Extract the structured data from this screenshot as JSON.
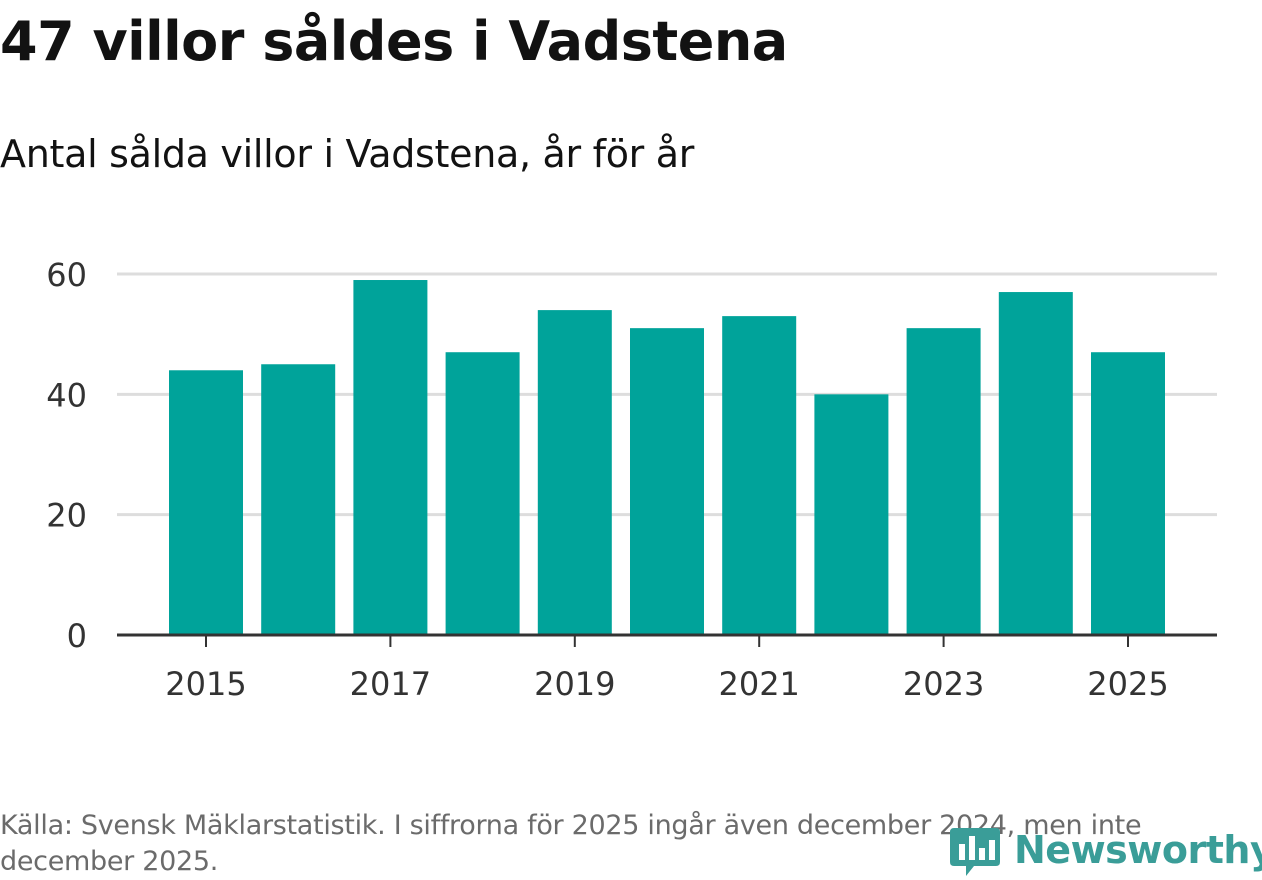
{
  "title": "47 villor såldes i Vadstena",
  "subtitle": "Antal sålda villor i Vadstena, år för år",
  "source": "Källa: Svensk Mäklarstatistik. I siffrorna för 2025 ingår även december 2024, men inte december 2025.",
  "brand": {
    "name": "Newsworthy",
    "logo_icon": "bar-chart-speech-bubble-icon",
    "color": "#3a9d98"
  },
  "colors": {
    "bar": "#00a39a",
    "grid": "#dddddd",
    "axis": "#333333",
    "tick_text": "#333333"
  },
  "chart_data": {
    "type": "bar",
    "x": [
      2015,
      2016,
      2017,
      2018,
      2019,
      2020,
      2021,
      2022,
      2023,
      2024,
      2025
    ],
    "values": [
      44,
      45,
      59,
      47,
      54,
      51,
      53,
      40,
      51,
      57,
      47
    ],
    "x_tick_labels": [
      "2015",
      "2017",
      "2019",
      "2021",
      "2023",
      "2025"
    ],
    "y_ticks": [
      0,
      20,
      40,
      60
    ],
    "ylim": [
      0,
      60
    ],
    "grid": true,
    "legend": "none"
  }
}
